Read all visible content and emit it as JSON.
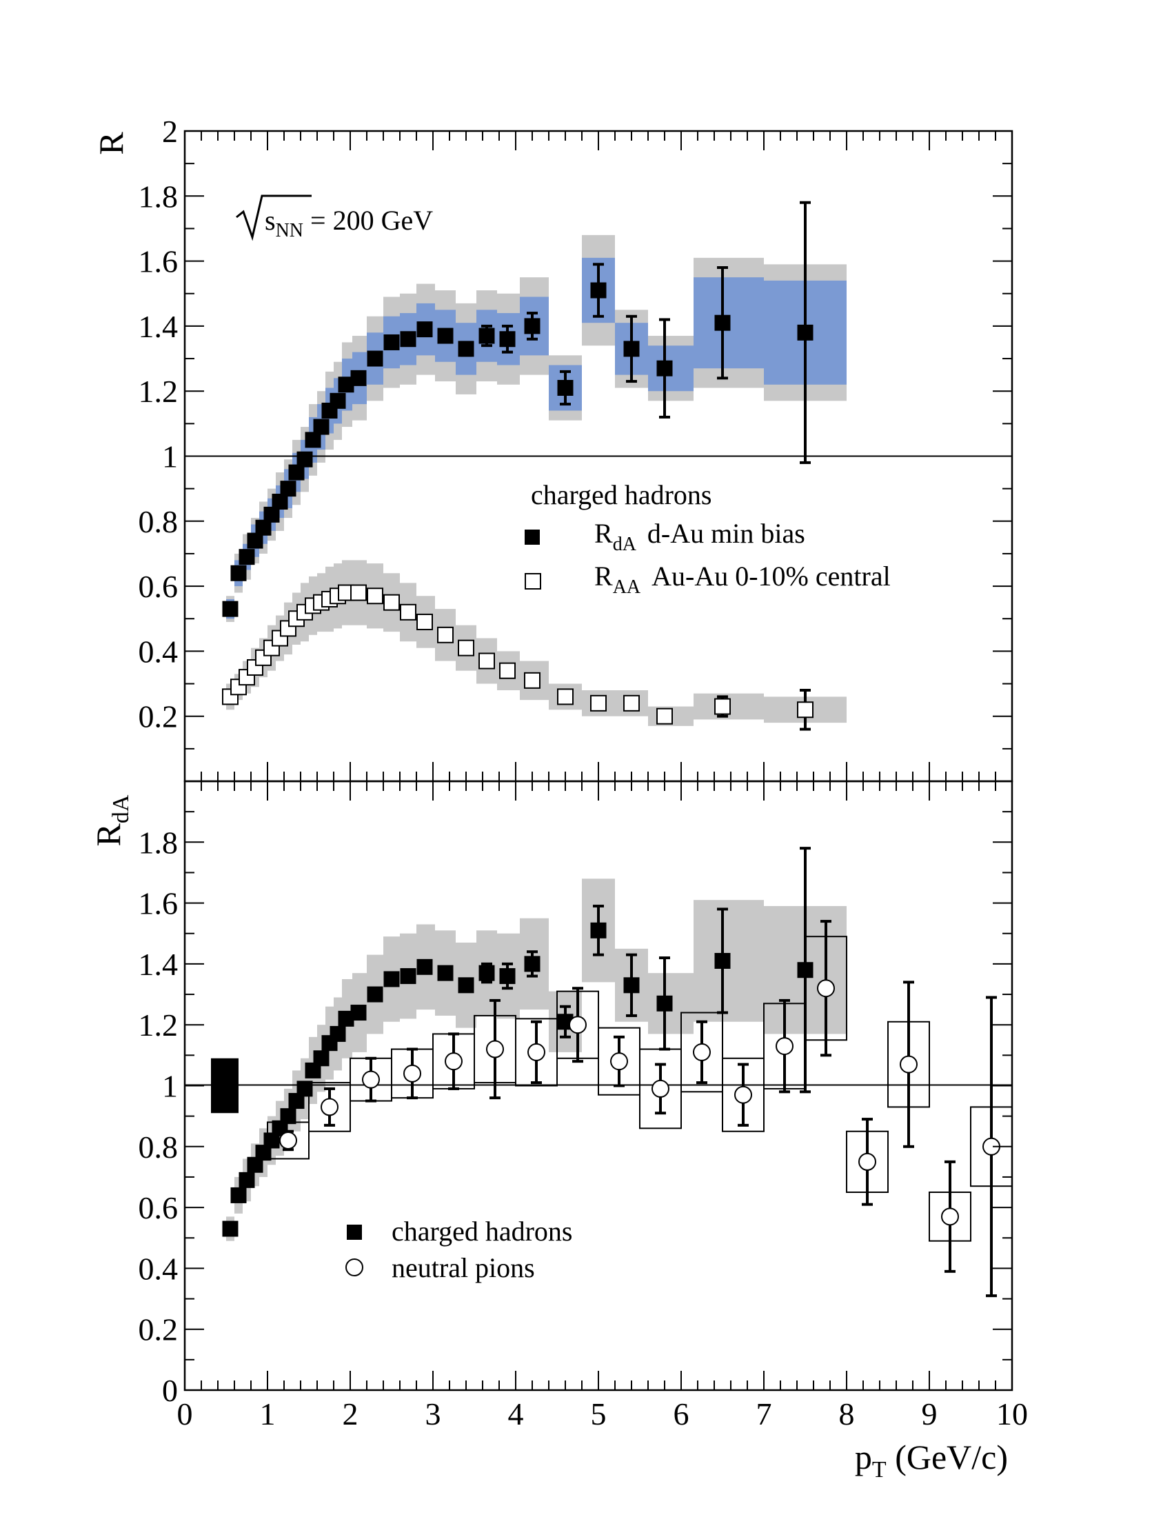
{
  "colors": {
    "syst_band": "#c8c8c8",
    "rda_band": "#7b9ad3",
    "marker": "#000000"
  },
  "top_panel": {
    "ylabel": "R",
    "energy_label_root": "s",
    "energy_label_sub": "NN",
    "energy_label_value": " = 200 GeV",
    "legend": {
      "title": "charged hadrons",
      "entries": [
        {
          "label": "R",
          "sub": "dA",
          "text": "d-Au min bias",
          "marker": "filled-square"
        },
        {
          "label": "R",
          "sub": "AA",
          "text": "Au-Au 0-10% central",
          "marker": "open-square"
        }
      ]
    }
  },
  "bottom_panel": {
    "ylabel": "R",
    "ylabel_sub": "dA",
    "legend": {
      "entries": [
        {
          "text": "charged hadrons",
          "marker": "filled-square"
        },
        {
          "text": "neutral pions",
          "marker": "open-circle"
        }
      ]
    }
  },
  "xaxis": {
    "label": "p",
    "label_sub": "T",
    "label_unit": " (GeV/c)",
    "ticks": [
      "0",
      "1",
      "2",
      "3",
      "4",
      "5",
      "6",
      "7",
      "8",
      "9",
      "10"
    ]
  },
  "chart_data": [
    {
      "type": "scatter",
      "panel": "top",
      "xlim": [
        0,
        10
      ],
      "ylim": [
        0,
        2
      ],
      "yticks": [
        "0.2",
        "0.4",
        "0.6",
        "0.8",
        "1",
        "1.2",
        "1.4",
        "1.6",
        "1.8",
        "2"
      ],
      "reference_line": 1,
      "series": [
        {
          "name": "R_dA d-Au min bias",
          "marker": "filled-square",
          "x": [
            0.55,
            0.65,
            0.75,
            0.85,
            0.95,
            1.05,
            1.15,
            1.25,
            1.35,
            1.45,
            1.55,
            1.65,
            1.75,
            1.85,
            1.95,
            2.1,
            2.3,
            2.5,
            2.7,
            2.9,
            3.15,
            3.4,
            3.65,
            3.9,
            4.2,
            4.6,
            5.0,
            5.4,
            5.8,
            6.5,
            7.5
          ],
          "y": [
            0.53,
            0.64,
            0.69,
            0.74,
            0.78,
            0.82,
            0.86,
            0.9,
            0.95,
            0.99,
            1.05,
            1.09,
            1.14,
            1.17,
            1.22,
            1.24,
            1.3,
            1.35,
            1.36,
            1.39,
            1.37,
            1.33,
            1.37,
            1.36,
            1.4,
            1.21,
            1.51,
            1.33,
            1.27,
            1.41,
            1.38
          ],
          "stat_err": [
            0,
            0,
            0,
            0,
            0,
            0,
            0,
            0,
            0,
            0,
            0,
            0,
            0,
            0,
            0,
            0,
            0,
            0,
            0,
            0,
            0,
            0.02,
            0.03,
            0.04,
            0.04,
            0.05,
            0.08,
            0.1,
            0.15,
            0.17,
            0.4
          ],
          "syst_band_gray": [
            0.04,
            0.06,
            0.07,
            0.07,
            0.08,
            0.08,
            0.09,
            0.09,
            0.1,
            0.1,
            0.11,
            0.11,
            0.12,
            0.12,
            0.13,
            0.13,
            0.13,
            0.14,
            0.14,
            0.14,
            0.14,
            0.14,
            0.14,
            0.14,
            0.15,
            0.1,
            0.17,
            0.12,
            0.1,
            0.2,
            0.21
          ],
          "syst_band_blue": [
            0.03,
            0.04,
            0.04,
            0.05,
            0.05,
            0.05,
            0.05,
            0.06,
            0.06,
            0.06,
            0.07,
            0.07,
            0.07,
            0.07,
            0.08,
            0.08,
            0.08,
            0.08,
            0.08,
            0.08,
            0.08,
            0.08,
            0.08,
            0.08,
            0.09,
            0.07,
            0.1,
            0.08,
            0.07,
            0.14,
            0.16
          ]
        },
        {
          "name": "R_AA Au-Au 0-10% central",
          "marker": "open-square",
          "x": [
            0.55,
            0.65,
            0.75,
            0.85,
            0.95,
            1.05,
            1.15,
            1.25,
            1.35,
            1.45,
            1.55,
            1.65,
            1.75,
            1.85,
            1.95,
            2.1,
            2.3,
            2.5,
            2.7,
            2.9,
            3.15,
            3.4,
            3.65,
            3.9,
            4.2,
            4.6,
            5.0,
            5.4,
            5.8,
            6.5,
            7.5
          ],
          "y": [
            0.26,
            0.29,
            0.32,
            0.35,
            0.38,
            0.41,
            0.44,
            0.47,
            0.5,
            0.52,
            0.54,
            0.55,
            0.56,
            0.57,
            0.58,
            0.58,
            0.57,
            0.55,
            0.52,
            0.49,
            0.45,
            0.41,
            0.37,
            0.34,
            0.31,
            0.26,
            0.24,
            0.24,
            0.2,
            0.23,
            0.22
          ],
          "stat_err": [
            0,
            0,
            0,
            0,
            0,
            0,
            0,
            0,
            0,
            0,
            0,
            0,
            0,
            0,
            0,
            0,
            0,
            0,
            0,
            0,
            0,
            0,
            0,
            0,
            0,
            0,
            0,
            0,
            0,
            0.03,
            0.06
          ],
          "syst_band_gray": [
            0.04,
            0.04,
            0.05,
            0.06,
            0.06,
            0.07,
            0.07,
            0.08,
            0.08,
            0.09,
            0.09,
            0.09,
            0.1,
            0.1,
            0.1,
            0.1,
            0.1,
            0.09,
            0.09,
            0.08,
            0.08,
            0.07,
            0.07,
            0.06,
            0.06,
            0.04,
            0.04,
            0.04,
            0.03,
            0.04,
            0.04
          ]
        }
      ]
    },
    {
      "type": "scatter",
      "panel": "bottom",
      "xlim": [
        0,
        10
      ],
      "ylim": [
        0,
        2
      ],
      "yticks": [
        "0",
        "0.2",
        "0.4",
        "0.6",
        "0.8",
        "1",
        "1.2",
        "1.4",
        "1.6",
        "1.8"
      ],
      "reference_line": 1,
      "normalization_box": {
        "y": 1,
        "err": 0.09
      },
      "series": [
        {
          "name": "charged hadrons",
          "marker": "filled-square",
          "x": [
            0.55,
            0.65,
            0.75,
            0.85,
            0.95,
            1.05,
            1.15,
            1.25,
            1.35,
            1.45,
            1.55,
            1.65,
            1.75,
            1.85,
            1.95,
            2.1,
            2.3,
            2.5,
            2.7,
            2.9,
            3.15,
            3.4,
            3.65,
            3.9,
            4.2,
            4.6,
            5.0,
            5.4,
            5.8,
            6.5,
            7.5
          ],
          "y": [
            0.53,
            0.64,
            0.69,
            0.74,
            0.78,
            0.82,
            0.86,
            0.9,
            0.95,
            0.99,
            1.05,
            1.09,
            1.14,
            1.17,
            1.22,
            1.24,
            1.3,
            1.35,
            1.36,
            1.39,
            1.37,
            1.33,
            1.37,
            1.36,
            1.4,
            1.21,
            1.51,
            1.33,
            1.27,
            1.41,
            1.38
          ],
          "stat_err": [
            0,
            0,
            0,
            0,
            0,
            0,
            0,
            0,
            0,
            0,
            0,
            0,
            0,
            0,
            0,
            0,
            0,
            0,
            0,
            0,
            0,
            0.02,
            0.03,
            0.04,
            0.04,
            0.05,
            0.08,
            0.1,
            0.15,
            0.17,
            0.4
          ],
          "syst_band_gray": [
            0.04,
            0.06,
            0.07,
            0.07,
            0.08,
            0.08,
            0.09,
            0.09,
            0.1,
            0.1,
            0.11,
            0.11,
            0.12,
            0.12,
            0.13,
            0.13,
            0.13,
            0.14,
            0.14,
            0.14,
            0.14,
            0.14,
            0.14,
            0.14,
            0.15,
            0.1,
            0.17,
            0.12,
            0.1,
            0.2,
            0.21
          ]
        },
        {
          "name": "neutral pions",
          "marker": "open-circle",
          "x": [
            1.25,
            1.75,
            2.25,
            2.75,
            3.25,
            3.75,
            4.25,
            4.75,
            5.25,
            5.75,
            6.25,
            6.75,
            7.25,
            7.75,
            8.25,
            8.75,
            9.25,
            9.75
          ],
          "y": [
            0.82,
            0.93,
            1.02,
            1.04,
            1.08,
            1.12,
            1.11,
            1.2,
            1.08,
            0.99,
            1.11,
            0.97,
            1.13,
            1.32,
            0.75,
            1.07,
            0.57,
            0.8
          ],
          "stat_err": [
            0.03,
            0.06,
            0.07,
            0.08,
            0.09,
            0.16,
            0.1,
            0.12,
            0.08,
            0.08,
            0.1,
            0.1,
            0.15,
            0.22,
            0.14,
            0.27,
            0.18,
            0.49
          ],
          "syst_box": [
            0.06,
            0.08,
            0.07,
            0.08,
            0.09,
            0.11,
            0.11,
            0.11,
            0.11,
            0.13,
            0.13,
            0.12,
            0.14,
            0.17,
            0.1,
            0.14,
            0.08,
            0.13
          ]
        }
      ]
    }
  ]
}
